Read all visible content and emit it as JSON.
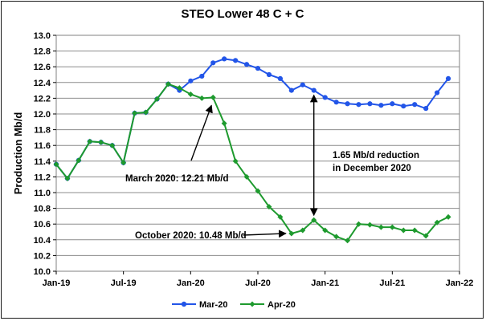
{
  "chart_data": {
    "type": "line",
    "title": "STEO Lower 48 C + C",
    "ylabel": "Production Mb/d",
    "xlabel": "",
    "ylim": [
      10.0,
      13.0
    ],
    "yticks": [
      "10.0",
      "10.2",
      "10.4",
      "10.6",
      "10.8",
      "11.0",
      "11.2",
      "11.4",
      "11.6",
      "11.8",
      "12.0",
      "12.2",
      "12.4",
      "12.6",
      "12.8",
      "13.0"
    ],
    "x_range": [
      "2019-01",
      "2022-01"
    ],
    "xticks": [
      "Jan-19",
      "Jul-19",
      "Jan-20",
      "Jul-20",
      "Jan-21",
      "Jul-21",
      "Jan-22"
    ],
    "grid": "horizontal",
    "legend_position": "bottom",
    "series": [
      {
        "name": "Mar-20",
        "color": "#2255e8",
        "marker": "circle",
        "x": [
          "2019-01",
          "2019-02",
          "2019-03",
          "2019-04",
          "2019-05",
          "2019-06",
          "2019-07",
          "2019-08",
          "2019-09",
          "2019-10",
          "2019-11",
          "2019-12",
          "2020-01",
          "2020-02",
          "2020-03",
          "2020-04",
          "2020-05",
          "2020-06",
          "2020-07",
          "2020-08",
          "2020-09",
          "2020-10",
          "2020-11",
          "2020-12",
          "2021-01",
          "2021-02",
          "2021-03",
          "2021-04",
          "2021-05",
          "2021-06",
          "2021-07",
          "2021-08",
          "2021-09",
          "2021-10",
          "2021-11",
          "2021-12"
        ],
        "values": [
          11.36,
          11.18,
          11.41,
          11.65,
          11.64,
          11.6,
          11.38,
          12.01,
          12.02,
          12.19,
          12.38,
          12.3,
          12.42,
          12.48,
          12.65,
          12.7,
          12.68,
          12.63,
          12.58,
          12.5,
          12.45,
          12.3,
          12.37,
          12.3,
          12.21,
          12.15,
          12.13,
          12.12,
          12.13,
          12.11,
          12.13,
          12.1,
          12.12,
          12.07,
          12.27,
          12.45
        ]
      },
      {
        "name": "Apr-20",
        "color": "#1e9a2e",
        "marker": "diamond",
        "x": [
          "2019-01",
          "2019-02",
          "2019-03",
          "2019-04",
          "2019-05",
          "2019-06",
          "2019-07",
          "2019-08",
          "2019-09",
          "2019-10",
          "2019-11",
          "2019-12",
          "2020-01",
          "2020-02",
          "2020-03",
          "2020-04",
          "2020-05",
          "2020-06",
          "2020-07",
          "2020-08",
          "2020-09",
          "2020-10",
          "2020-11",
          "2020-12",
          "2021-01",
          "2021-02",
          "2021-03",
          "2021-04",
          "2021-05",
          "2021-06",
          "2021-07",
          "2021-08",
          "2021-09",
          "2021-10",
          "2021-11",
          "2021-12"
        ],
        "values": [
          11.36,
          11.18,
          11.41,
          11.65,
          11.64,
          11.6,
          11.38,
          12.01,
          12.02,
          12.19,
          12.38,
          12.33,
          12.25,
          12.2,
          12.21,
          11.88,
          11.4,
          11.2,
          11.02,
          10.82,
          10.69,
          10.48,
          10.52,
          10.65,
          10.52,
          10.44,
          10.39,
          10.6,
          10.59,
          10.56,
          10.56,
          10.52,
          10.52,
          10.45,
          10.62,
          10.69
        ]
      }
    ],
    "annotations": [
      {
        "text": "March 2020: 12.21 Mb/d"
      },
      {
        "text": "October 2020: 10.48 Mb/d"
      },
      {
        "text_lines": [
          "1.65 Mb/d reduction",
          "in December 2020"
        ]
      }
    ]
  }
}
